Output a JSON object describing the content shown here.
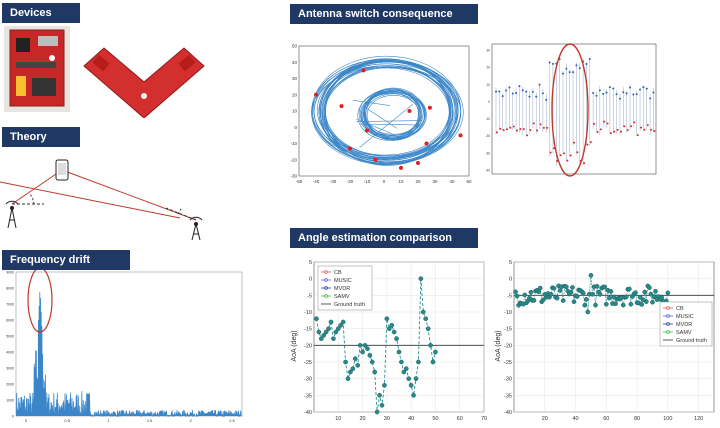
{
  "headers": {
    "devices": "Devices",
    "theory": "Theory",
    "frequency_drift": "Frequency drift",
    "antenna_switch": "Antenna switch consequence",
    "angle_estimation": "Angle estimation comparison"
  },
  "colors": {
    "header_bg": "#1f3864",
    "plot_blue": "#3a86c8",
    "marker_red": "#e02020",
    "highlight_red": "#c0392b",
    "board_red": "#d32f2f",
    "teal": "#2a8a8a"
  },
  "theory": {
    "icons": [
      "phone-icon",
      "antenna-icon",
      "antenna-icon"
    ]
  },
  "chart_data": [
    {
      "type": "line",
      "xlabel": "",
      "ylabel": "",
      "ylim": [
        0,
        9000
      ],
      "ytick_labels": [
        "9000",
        "8000",
        "7000",
        "6000",
        "5000",
        "4000",
        "3000",
        "2000",
        "1000",
        "0"
      ],
      "xtick_labels": [
        "0",
        "0.5",
        "1",
        "1.5",
        "2",
        "2.5"
      ],
      "peak_x": 0.3,
      "peak_y": 8500
    },
    {
      "type": "scatter",
      "xlim": [
        -50,
        50
      ],
      "ylim": [
        -30,
        50
      ],
      "xtick_labels": [
        "-50",
        "-40",
        "-30",
        "-20",
        "-10",
        "0",
        "10",
        "20",
        "30",
        "40",
        "50"
      ],
      "ytick_labels": [
        "50",
        "40",
        "30",
        "20",
        "10",
        "0",
        "-10",
        "-20",
        "-30"
      ],
      "red_points": [
        [
          -12,
          35
        ],
        [
          -25,
          13
        ],
        [
          -40,
          20
        ],
        [
          -10,
          -2
        ],
        [
          -20,
          -13
        ],
        [
          -5,
          -20
        ],
        [
          10,
          -25
        ],
        [
          25,
          -10
        ],
        [
          45,
          -5
        ],
        [
          20,
          -22
        ],
        [
          15,
          10
        ],
        [
          27,
          12
        ]
      ]
    },
    {
      "type": "line",
      "ytick_labels": [
        "30",
        "20",
        "10",
        "0",
        "-10",
        "-20",
        "-30",
        "-40"
      ]
    },
    {
      "type": "line",
      "ylabel": "AoA (deg)",
      "xlim": [
        0,
        70
      ],
      "ylim": [
        -40,
        5
      ],
      "xtick_labels": [
        "10",
        "20",
        "30",
        "40",
        "50",
        "60",
        "70"
      ],
      "ytick_labels": [
        "5",
        "0",
        "-5",
        "-10",
        "-15",
        "-20",
        "-25",
        "-30",
        "-35",
        "-40"
      ],
      "legend": [
        "CB",
        "MUSIC",
        "MVDR",
        "SAMV",
        "Ground truth"
      ],
      "ground_truth": -20,
      "series": {
        "x": [
          1,
          2,
          3,
          4,
          5,
          6,
          7,
          8,
          9,
          10,
          11,
          12,
          13,
          14,
          15,
          16,
          17,
          18,
          19,
          20,
          21,
          22,
          23,
          24,
          25,
          26,
          27,
          28,
          29,
          30,
          31,
          32,
          33,
          34,
          35,
          36,
          37,
          38,
          39,
          40,
          41,
          42,
          43,
          44,
          45,
          46,
          47,
          48,
          49,
          50
        ],
        "y": [
          -12,
          -16,
          -18,
          -17,
          -16,
          -15,
          -13,
          -18,
          -16,
          -15,
          -14,
          -13,
          -25,
          -30,
          -28,
          -27,
          -24,
          -26,
          -20,
          -22,
          -20,
          -21,
          -23,
          -25,
          -28,
          -40,
          -35,
          -38,
          -32,
          -12,
          -15,
          -14,
          -16,
          -18,
          -22,
          -25,
          -28,
          -27,
          -30,
          -32,
          -35,
          -30,
          -25,
          0,
          -10,
          -12,
          -15,
          -20,
          -25,
          -22
        ]
      }
    },
    {
      "type": "scatter",
      "ylabel": "AoA (deg)",
      "xlim": [
        0,
        130
      ],
      "ylim": [
        -40,
        5
      ],
      "xtick_labels": [
        "20",
        "40",
        "60",
        "80",
        "100",
        "120"
      ],
      "ytick_labels": [
        "5",
        "0",
        "-5",
        "-10",
        "-15",
        "-20",
        "-25",
        "-30",
        "-35",
        "-40"
      ],
      "legend": [
        "CB",
        "MUSIC",
        "MVDR",
        "SAMV",
        "Ground truth"
      ],
      "ground_truth": -5
    }
  ]
}
